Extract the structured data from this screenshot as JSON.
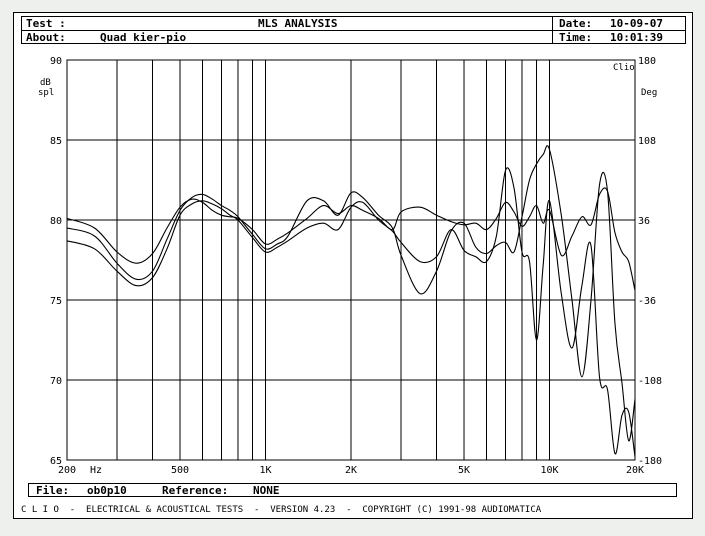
{
  "header": {
    "test_label": "Test :",
    "title": "MLS ANALYSIS",
    "date_label": "Date:",
    "date_value": "10-09-07",
    "about_label": "About:",
    "about_value": "Quad kier-pio",
    "time_label": "Time:",
    "time_value": "10:01:39"
  },
  "file_bar": {
    "file_label": "File:",
    "file_value": "ob0p10",
    "reference_label": "Reference:",
    "reference_value": "NONE"
  },
  "footer": {
    "text": "C L I O  -  ELECTRICAL & ACOUSTICAL TESTS  -  VERSION 4.23  -  COPYRIGHT (C) 1991-98 AUDIOMATICA"
  },
  "chart_data": {
    "type": "line",
    "xscale": "log",
    "xlim": [
      200,
      20000
    ],
    "x_tick_labels": [
      {
        "x": 200,
        "label": "200"
      },
      {
        "x": 500,
        "label": "500"
      },
      {
        "x": 1000,
        "label": "1K"
      },
      {
        "x": 2000,
        "label": "2K"
      },
      {
        "x": 5000,
        "label": "5K"
      },
      {
        "x": 10000,
        "label": "10K"
      },
      {
        "x": 20000,
        "label": "20K"
      }
    ],
    "x_unit_label": "Hz",
    "x_gridlines": [
      200,
      300,
      400,
      500,
      600,
      700,
      800,
      900,
      1000,
      2000,
      3000,
      4000,
      5000,
      6000,
      7000,
      8000,
      9000,
      10000,
      20000
    ],
    "ylim": [
      65,
      90
    ],
    "y_ticks": [
      65,
      70,
      75,
      80,
      85,
      90
    ],
    "ylabel": "dB spl",
    "y2lim": [
      -180,
      180
    ],
    "y2_ticks": [
      180,
      108,
      36,
      -36,
      -108,
      -180
    ],
    "y2label": "Deg",
    "corner_label": "Clio",
    "grid": true,
    "line_color": "#000000",
    "series": [
      {
        "x": [
          200,
          250,
          300,
          350,
          400,
          450,
          500,
          550,
          600,
          650,
          700,
          750,
          800,
          900,
          1000,
          1100,
          1200,
          1400,
          1600,
          1800,
          2000,
          2200,
          2500,
          2800,
          3000,
          3500,
          4000,
          4500,
          5000,
          5500,
          6000,
          6500,
          7000,
          7500,
          8000,
          8500,
          9000,
          9500,
          10000,
          11000,
          12000,
          13000,
          14000,
          15000,
          16000,
          17000,
          18000,
          19000,
          20000
        ],
        "y": [
          80.1,
          79.5,
          78.0,
          77.3,
          77.9,
          79.5,
          80.8,
          81.3,
          81.1,
          80.6,
          80.3,
          80.2,
          80.1,
          79.4,
          78.5,
          78.8,
          79.2,
          80.1,
          80.9,
          80.4,
          80.9,
          80.6,
          80.1,
          79.4,
          80.5,
          80.8,
          80.3,
          79.9,
          79.7,
          79.8,
          79.4,
          80.1,
          81.1,
          80.5,
          79.6,
          80.2,
          80.9,
          79.8,
          80.6,
          77.8,
          79.0,
          80.2,
          79.7,
          81.6,
          81.8,
          79.2,
          78.0,
          77.4,
          75.6
        ]
      },
      {
        "x": [
          200,
          250,
          300,
          350,
          400,
          450,
          500,
          550,
          600,
          650,
          700,
          750,
          800,
          900,
          1000,
          1100,
          1200,
          1400,
          1600,
          1800,
          2000,
          2200,
          2500,
          2800,
          3000,
          3500,
          4000,
          4500,
          5000,
          5500,
          6000,
          6500,
          7000,
          7500,
          8000,
          8500,
          9000,
          9500,
          10000,
          11000,
          12000,
          13000,
          14000,
          15000,
          16000,
          17000,
          18000,
          19000,
          20000
        ],
        "y": [
          79.5,
          79.0,
          77.3,
          76.3,
          76.8,
          78.8,
          80.6,
          81.4,
          81.6,
          81.3,
          80.9,
          80.6,
          80.2,
          79.1,
          78.2,
          78.5,
          79.0,
          81.2,
          81.2,
          80.3,
          81.7,
          81.4,
          80.3,
          79.5,
          77.8,
          75.4,
          76.8,
          79.3,
          79.8,
          78.3,
          77.9,
          78.4,
          78.6,
          78.0,
          80.2,
          82.5,
          83.5,
          84.1,
          84.4,
          80.3,
          75.0,
          70.2,
          75.0,
          82.2,
          81.8,
          73.5,
          69.8,
          66.2,
          68.8
        ]
      },
      {
        "x": [
          200,
          250,
          300,
          350,
          400,
          450,
          500,
          550,
          600,
          650,
          700,
          750,
          800,
          900,
          1000,
          1100,
          1200,
          1400,
          1600,
          1800,
          2000,
          2200,
          2500,
          2800,
          3000,
          3500,
          4000,
          4500,
          5000,
          5500,
          6000,
          6500,
          7000,
          7500,
          8000,
          8500,
          9000,
          9500,
          10000,
          11000,
          12000,
          13000,
          14000,
          15000,
          16000,
          17000,
          18000,
          19000,
          20000
        ],
        "y": [
          78.7,
          78.2,
          76.8,
          75.9,
          76.4,
          78.2,
          80.3,
          81.0,
          81.2,
          81.0,
          80.7,
          80.3,
          80.0,
          78.9,
          78.0,
          78.3,
          78.7,
          79.5,
          79.8,
          79.4,
          80.8,
          81.1,
          80.0,
          79.3,
          78.6,
          77.4,
          77.7,
          79.4,
          78.1,
          77.7,
          77.4,
          79.0,
          83.1,
          82.0,
          78.0,
          77.4,
          72.5,
          77.2,
          81.2,
          75.4,
          72.0,
          75.9,
          78.4,
          70.2,
          69.4,
          65.4,
          67.8,
          68.0,
          65.2
        ]
      }
    ]
  }
}
